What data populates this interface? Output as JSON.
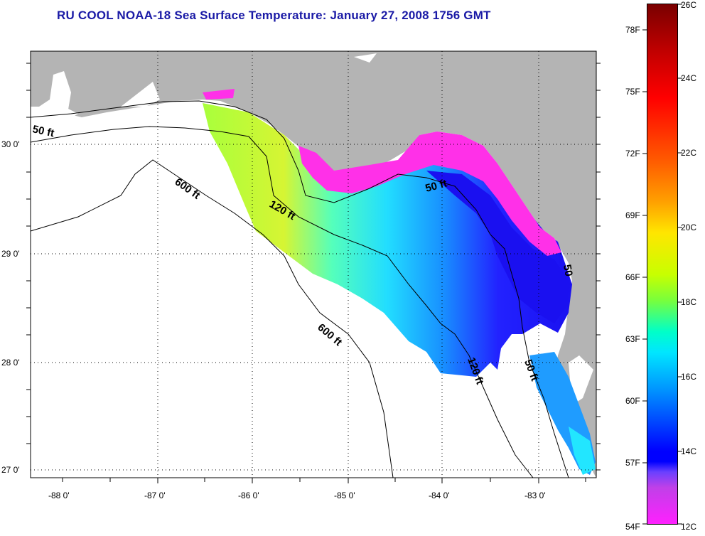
{
  "title": "RU COOL  NOAA-18  Sea Surface Temperature:  January 27, 2008 1756 GMT",
  "lat_labels": [
    "30 0'",
    "29 0'",
    "28 0'",
    "27 0'"
  ],
  "lon_labels": [
    "-88 0'",
    "-87 0'",
    "-86 0'",
    "-85 0'",
    "-84 0'",
    "-83 0'"
  ],
  "contour_labels": {
    "c50_west": "50 ft",
    "c600_north": "600 ft",
    "c120_north": "120 ft",
    "c50_east": "50 ft",
    "c600_south": "600 ft",
    "c120_south": "120 ft",
    "c50_south": "50 ft",
    "c50_coast": "50"
  },
  "colorbar": {
    "celsius": [
      "26C",
      "24C",
      "22C",
      "20C",
      "18C",
      "16C",
      "14C",
      "12C"
    ],
    "fahrenheit": [
      "78F",
      "75F",
      "72F",
      "69F",
      "66F",
      "63F",
      "60F",
      "57F",
      "54F"
    ]
  },
  "colors": {
    "land": "#b4b4b4",
    "title": "#1a1aa6",
    "warm_max": "#7a0000",
    "cold_min": "#ff20ff"
  }
}
